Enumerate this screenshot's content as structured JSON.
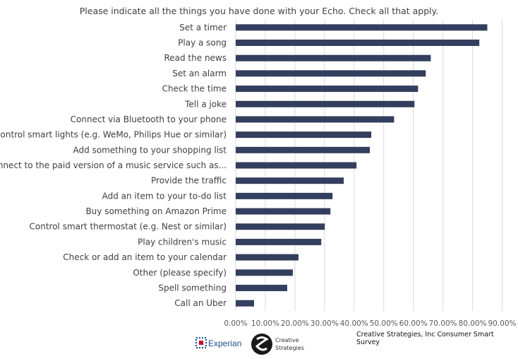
{
  "chart_data": {
    "type": "bar",
    "orientation": "horizontal",
    "title": "Please indicate all the things you have done with your Echo. Check all that apply.",
    "categories": [
      "Set a timer",
      "Play a song",
      "Read the news",
      "Set an alarm",
      "Check the time",
      "Tell a joke",
      "Connect via Bluetooth to your phone",
      "Control smart lights (e.g. WeMo, Philips Hue or similar)",
      "Add something to your shopping list",
      "Connect to the paid version of a music service such as...",
      "Provide the traffic",
      "Add an item to your to-do list",
      "Buy something on Amazon Prime",
      "Control smart thermostat (e.g. Nest or similar)",
      "Play children's music",
      "Check or add an item to your calendar",
      "Other (please specify)",
      "Spell something",
      "Call an Uber"
    ],
    "values": [
      85.0,
      82.3,
      65.9,
      64.2,
      61.6,
      60.4,
      53.5,
      45.8,
      45.3,
      40.8,
      36.5,
      32.7,
      32.0,
      30.1,
      28.9,
      21.2,
      19.3,
      17.4,
      6.2
    ],
    "xlim": [
      0,
      90
    ],
    "xticks": [
      "0.00%",
      "10.00%",
      "20.00%",
      "30.00%",
      "40.00%",
      "50.00%",
      "60.00%",
      "70.00%",
      "80.00%",
      "90.00%"
    ],
    "grid": true,
    "bar_color": "#343e5e",
    "grid_color": "#d9d9d9"
  },
  "footer": {
    "source": "Creative Strategies, Inc Consumer Smart Survey",
    "logo_experian": "Experian",
    "logo_cs_line1": "Creative",
    "logo_cs_line2": "Strategies"
  }
}
